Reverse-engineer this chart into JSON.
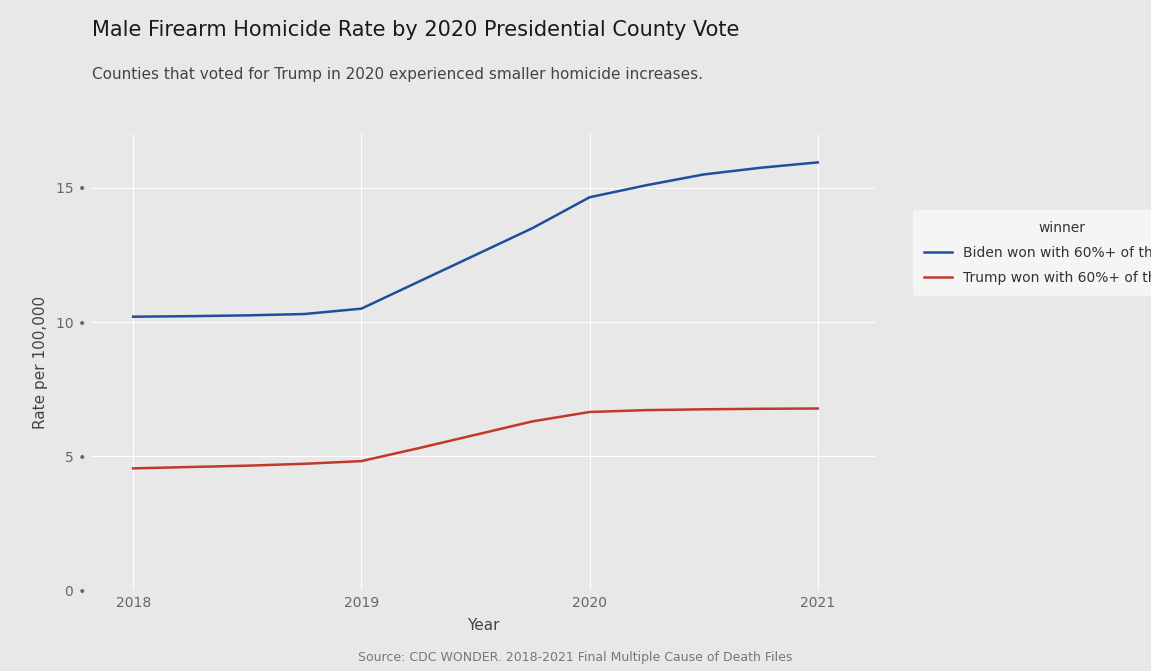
{
  "title": "Male Firearm Homicide Rate by 2020 Presidential County Vote",
  "subtitle": "Counties that voted for Trump in 2020 experienced smaller homicide increases.",
  "source": "Source: CDC WONDER. 2018-2021 Final Multiple Cause of Death Files",
  "xlabel": "Year",
  "ylabel": "Rate per 100,000",
  "legend_title": "winner",
  "years": [
    2018,
    2018.25,
    2018.5,
    2018.75,
    2019,
    2019.25,
    2019.5,
    2019.75,
    2020,
    2020.25,
    2020.5,
    2020.75,
    2021
  ],
  "biden_values": [
    10.2,
    10.22,
    10.25,
    10.3,
    10.5,
    11.5,
    12.5,
    13.5,
    14.65,
    15.1,
    15.5,
    15.75,
    15.95
  ],
  "trump_values": [
    4.55,
    4.6,
    4.65,
    4.72,
    4.82,
    5.3,
    5.8,
    6.3,
    6.65,
    6.72,
    6.75,
    6.77,
    6.78
  ],
  "biden_color": "#1f4e9e",
  "trump_color": "#c0392b",
  "background_color": "#e8e8e8",
  "plot_bg_color": "#e8e8e8",
  "legend_bg_color": "#f5f5f5",
  "grid_color": "#ffffff",
  "ylim": [
    0,
    17
  ],
  "yticks": [
    0,
    5,
    10,
    15
  ],
  "xticks": [
    2018,
    2019,
    2020,
    2021
  ],
  "line_width": 1.8,
  "title_fontsize": 15,
  "subtitle_fontsize": 11,
  "axis_label_fontsize": 11,
  "tick_fontsize": 10,
  "legend_fontsize": 10,
  "source_fontsize": 9
}
